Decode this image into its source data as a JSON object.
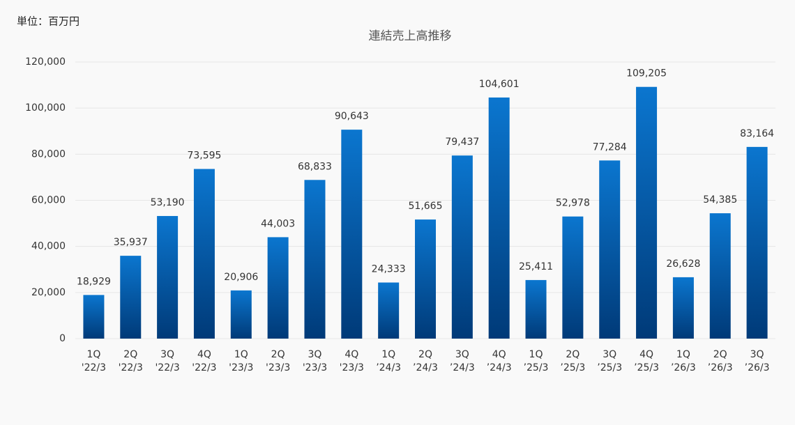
{
  "chart_data": {
    "type": "bar",
    "unit_note": "単位：百万円",
    "title": "連結売上高推移",
    "categories": [
      [
        "1Q",
        "'22/3"
      ],
      [
        "2Q",
        "'22/3"
      ],
      [
        "3Q",
        "'22/3"
      ],
      [
        "4Q",
        "'22/3"
      ],
      [
        "1Q",
        "'23/3"
      ],
      [
        "2Q",
        "'23/3"
      ],
      [
        "3Q",
        "'23/3"
      ],
      [
        "4Q",
        "'23/3"
      ],
      [
        "1Q",
        "’24/3"
      ],
      [
        "2Q",
        "’24/3"
      ],
      [
        "3Q",
        "’24/3"
      ],
      [
        "4Q",
        "’24/3"
      ],
      [
        "1Q",
        "’25/3"
      ],
      [
        "2Q",
        "’25/3"
      ],
      [
        "3Q",
        "’25/3"
      ],
      [
        "4Q",
        "’25/3"
      ],
      [
        "1Q",
        "’26/3"
      ],
      [
        "2Q",
        "’26/3"
      ],
      [
        "3Q",
        "’26/3"
      ]
    ],
    "values": [
      18929,
      35937,
      53190,
      73595,
      20906,
      44003,
      68833,
      90643,
      24333,
      51665,
      79437,
      104601,
      25411,
      52978,
      77284,
      109205,
      26628,
      54385,
      83164
    ],
    "value_labels": [
      "18,929",
      "35,937",
      "53,190",
      "73,595",
      "20,906",
      "44,003",
      "68,833",
      "90,643",
      "24,333",
      "51,665",
      "79,437",
      "104,601",
      "25,411",
      "52,978",
      "77,284",
      "109,205",
      "26,628",
      "54,385",
      "83,164"
    ],
    "gradient": [
      "#0b76cf",
      "#003a78"
    ],
    "ylim": [
      0,
      120000
    ],
    "yticks": [
      0,
      {
        "value": 20000,
        "label": "20,000"
      },
      {
        "value": 40000,
        "label": "40,000"
      },
      {
        "value": 60000,
        "label": "60,000"
      },
      {
        "value": 80000,
        "label": "80,000"
      },
      {
        "value": 100000,
        "label": "100,000"
      },
      {
        "value": 120000,
        "label": "120,000"
      }
    ],
    "grid": true
  }
}
